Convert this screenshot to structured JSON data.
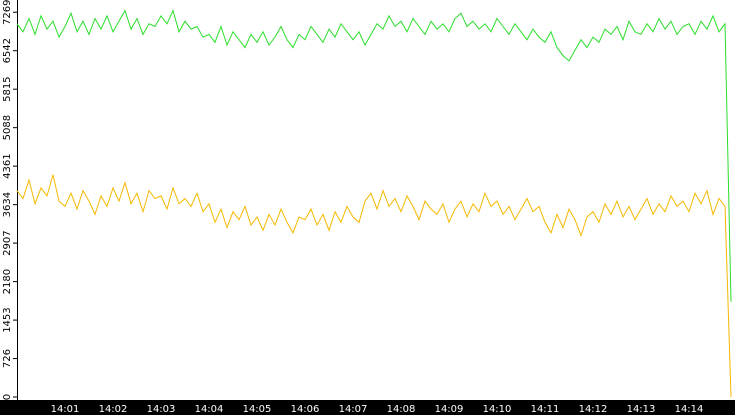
{
  "chart_data": {
    "type": "line",
    "categories": [
      null,
      null,
      null,
      null,
      null,
      null,
      null,
      null,
      "14:01",
      null,
      null,
      null,
      null,
      null,
      null,
      null,
      "14:02",
      null,
      null,
      null,
      null,
      null,
      null,
      null,
      "14:03",
      null,
      null,
      null,
      null,
      null,
      null,
      null,
      "14:04",
      null,
      null,
      null,
      null,
      null,
      null,
      null,
      "14:05",
      null,
      null,
      null,
      null,
      null,
      null,
      null,
      "14:06",
      null,
      null,
      null,
      null,
      null,
      null,
      null,
      "14:07",
      null,
      null,
      null,
      null,
      null,
      null,
      null,
      "14:08",
      null,
      null,
      null,
      null,
      null,
      null,
      null,
      "14:09",
      null,
      null,
      null,
      null,
      null,
      null,
      null,
      "14:10",
      null,
      null,
      null,
      null,
      null,
      null,
      null,
      "14:11",
      null,
      null,
      null,
      null,
      null,
      null,
      null,
      "14:12",
      null,
      null,
      null,
      null,
      null,
      null,
      null,
      "14:13",
      null,
      null,
      null,
      null,
      null,
      null,
      null,
      "14:14",
      null,
      null,
      null,
      null,
      null,
      null,
      null
    ],
    "series": [
      {
        "color": "#2ade2a",
        "values": [
          7050,
          6900,
          7150,
          6850,
          7200,
          6950,
          7100,
          6800,
          7000,
          7250,
          6900,
          7100,
          6850,
          7150,
          6950,
          7200,
          6900,
          7100,
          7300,
          6950,
          7150,
          6850,
          7050,
          7000,
          7200,
          7050,
          7300,
          6900,
          7100,
          6950,
          7000,
          6800,
          6850,
          6700,
          7000,
          6650,
          6900,
          6750,
          6600,
          6850,
          6700,
          6900,
          6650,
          6800,
          7000,
          6750,
          6600,
          6850,
          6750,
          7000,
          6850,
          6700,
          6950,
          6800,
          7050,
          6900,
          6750,
          6900,
          6650,
          6850,
          7050,
          6950,
          7200,
          7000,
          7100,
          6900,
          7150,
          7000,
          6850,
          7100,
          6950,
          7050,
          6900,
          7150,
          7250,
          7000,
          7100,
          6950,
          7050,
          6900,
          7150,
          7000,
          6850,
          7050,
          6900,
          6750,
          6950,
          6800,
          6700,
          6900,
          6600,
          6450,
          6350,
          6550,
          6750,
          6600,
          6800,
          6700,
          6950,
          6850,
          7000,
          6750,
          7100,
          6900,
          6850,
          7050,
          6900,
          7150,
          6950,
          7100,
          6850,
          7000,
          7050,
          6850,
          7100,
          6950,
          7200,
          6900,
          7050,
          1800
        ]
      },
      {
        "color": "#f5b800",
        "values": [
          3900,
          3750,
          4100,
          3650,
          3950,
          3800,
          4200,
          3700,
          3600,
          3850,
          3550,
          3900,
          3700,
          3450,
          3800,
          3600,
          3950,
          3700,
          4050,
          3650,
          3850,
          3500,
          3900,
          3750,
          3800,
          3550,
          3950,
          3650,
          3750,
          3600,
          3850,
          3500,
          3650,
          3300,
          3550,
          3200,
          3500,
          3350,
          3600,
          3250,
          3400,
          3150,
          3450,
          3250,
          3550,
          3300,
          3100,
          3400,
          3350,
          3550,
          3250,
          3450,
          3150,
          3500,
          3300,
          3600,
          3400,
          3300,
          3700,
          3850,
          3550,
          3900,
          3600,
          3750,
          3500,
          3800,
          3600,
          3350,
          3700,
          3550,
          3450,
          3650,
          3300,
          3550,
          3700,
          3400,
          3650,
          3500,
          3850,
          3600,
          3700,
          3450,
          3600,
          3350,
          3550,
          3750,
          3500,
          3600,
          3300,
          3100,
          3450,
          3200,
          3550,
          3350,
          3050,
          3400,
          3500,
          3300,
          3650,
          3450,
          3700,
          3400,
          3600,
          3350,
          3550,
          3750,
          3450,
          3650,
          3500,
          3800,
          3600,
          3700,
          3500,
          3850,
          3650,
          3900,
          3450,
          3750,
          3600,
          0
        ]
      }
    ],
    "ylim": [
      0,
      7500
    ],
    "yticks": [
      0,
      726,
      1453,
      2180,
      2907,
      3634,
      4361,
      5088,
      5815,
      6542,
      7269
    ]
  }
}
